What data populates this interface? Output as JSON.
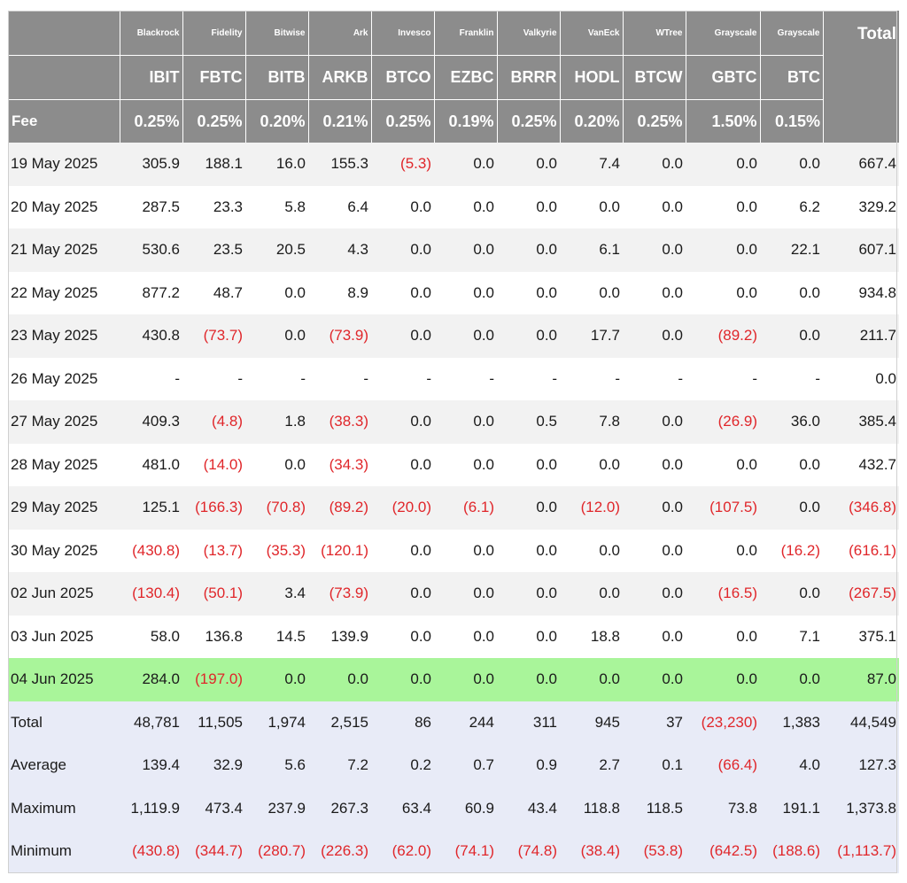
{
  "header": {
    "issuers": [
      "Blackrock",
      "Fidelity",
      "Bitwise",
      "Ark",
      "Invesco",
      "Franklin",
      "Valkyrie",
      "VanEck",
      "WTree",
      "Grayscale",
      "Grayscale"
    ],
    "total_label": "Total",
    "tickers": [
      "IBIT",
      "FBTC",
      "BITB",
      "ARKB",
      "BTCO",
      "EZBC",
      "BRRR",
      "HODL",
      "BTCW",
      "GBTC",
      "BTC"
    ],
    "fee_label": "Fee",
    "fees": [
      "0.25%",
      "0.25%",
      "0.20%",
      "0.21%",
      "0.25%",
      "0.19%",
      "0.25%",
      "0.20%",
      "0.25%",
      "1.50%",
      "0.15%"
    ]
  },
  "rows": [
    {
      "date": "19 May 2025",
      "values": [
        "305.9",
        "188.1",
        "16.0",
        "155.3",
        "(5.3)",
        "0.0",
        "0.0",
        "7.4",
        "0.0",
        "0.0",
        "0.0"
      ],
      "total": "667.4"
    },
    {
      "date": "20 May 2025",
      "values": [
        "287.5",
        "23.3",
        "5.8",
        "6.4",
        "0.0",
        "0.0",
        "0.0",
        "0.0",
        "0.0",
        "0.0",
        "6.2"
      ],
      "total": "329.2"
    },
    {
      "date": "21 May 2025",
      "values": [
        "530.6",
        "23.5",
        "20.5",
        "4.3",
        "0.0",
        "0.0",
        "0.0",
        "6.1",
        "0.0",
        "0.0",
        "22.1"
      ],
      "total": "607.1"
    },
    {
      "date": "22 May 2025",
      "values": [
        "877.2",
        "48.7",
        "0.0",
        "8.9",
        "0.0",
        "0.0",
        "0.0",
        "0.0",
        "0.0",
        "0.0",
        "0.0"
      ],
      "total": "934.8"
    },
    {
      "date": "23 May 2025",
      "values": [
        "430.8",
        "(73.7)",
        "0.0",
        "(73.9)",
        "0.0",
        "0.0",
        "0.0",
        "17.7",
        "0.0",
        "(89.2)",
        "0.0"
      ],
      "total": "211.7"
    },
    {
      "date": "26 May 2025",
      "values": [
        "-",
        "-",
        "-",
        "-",
        "-",
        "-",
        "-",
        "-",
        "-",
        "-",
        "-"
      ],
      "total": "0.0"
    },
    {
      "date": "27 May 2025",
      "values": [
        "409.3",
        "(4.8)",
        "1.8",
        "(38.3)",
        "0.0",
        "0.0",
        "0.5",
        "7.8",
        "0.0",
        "(26.9)",
        "36.0"
      ],
      "total": "385.4"
    },
    {
      "date": "28 May 2025",
      "values": [
        "481.0",
        "(14.0)",
        "0.0",
        "(34.3)",
        "0.0",
        "0.0",
        "0.0",
        "0.0",
        "0.0",
        "0.0",
        "0.0"
      ],
      "total": "432.7"
    },
    {
      "date": "29 May 2025",
      "values": [
        "125.1",
        "(166.3)",
        "(70.8)",
        "(89.2)",
        "(20.0)",
        "(6.1)",
        "0.0",
        "(12.0)",
        "0.0",
        "(107.5)",
        "0.0"
      ],
      "total": "(346.8)"
    },
    {
      "date": "30 May 2025",
      "values": [
        "(430.8)",
        "(13.7)",
        "(35.3)",
        "(120.1)",
        "0.0",
        "0.0",
        "0.0",
        "0.0",
        "0.0",
        "0.0",
        "(16.2)"
      ],
      "total": "(616.1)"
    },
    {
      "date": "02 Jun 2025",
      "values": [
        "(130.4)",
        "(50.1)",
        "3.4",
        "(73.9)",
        "0.0",
        "0.0",
        "0.0",
        "0.0",
        "0.0",
        "(16.5)",
        "0.0"
      ],
      "total": "(267.5)"
    },
    {
      "date": "03 Jun 2025",
      "values": [
        "58.0",
        "136.8",
        "14.5",
        "139.9",
        "0.0",
        "0.0",
        "0.0",
        "18.8",
        "0.0",
        "0.0",
        "7.1"
      ],
      "total": "375.1"
    },
    {
      "date": "04 Jun 2025",
      "values": [
        "284.0",
        "(197.0)",
        "0.0",
        "0.0",
        "0.0",
        "0.0",
        "0.0",
        "0.0",
        "0.0",
        "0.0",
        "0.0"
      ],
      "total": "87.0",
      "highlight": true
    }
  ],
  "stats": [
    {
      "label": "Total",
      "values": [
        "48,781",
        "11,505",
        "1,974",
        "2,515",
        "86",
        "244",
        "311",
        "945",
        "37",
        "(23,230)",
        "1,383"
      ],
      "total": "44,549"
    },
    {
      "label": "Average",
      "values": [
        "139.4",
        "32.9",
        "5.6",
        "7.2",
        "0.2",
        "0.7",
        "0.9",
        "2.7",
        "0.1",
        "(66.4)",
        "4.0"
      ],
      "total": "127.3"
    },
    {
      "label": "Maximum",
      "values": [
        "1,119.9",
        "473.4",
        "237.9",
        "267.3",
        "63.4",
        "60.9",
        "43.4",
        "118.8",
        "118.5",
        "73.8",
        "191.1"
      ],
      "total": "1,373.8"
    },
    {
      "label": "Minimum",
      "values": [
        "(430.8)",
        "(344.7)",
        "(280.7)",
        "(226.3)",
        "(62.0)",
        "(74.1)",
        "(74.8)",
        "(38.4)",
        "(53.8)",
        "(642.5)",
        "(188.6)"
      ],
      "total": "(1,113.7)"
    }
  ],
  "colors": {
    "header_bg": "#8c8c8c",
    "row_alt_bg": "#f2f2f2",
    "highlight_bg": "#a9f59a",
    "stats_bg": "#e8ebf7",
    "negative_text": "#e0262a"
  }
}
